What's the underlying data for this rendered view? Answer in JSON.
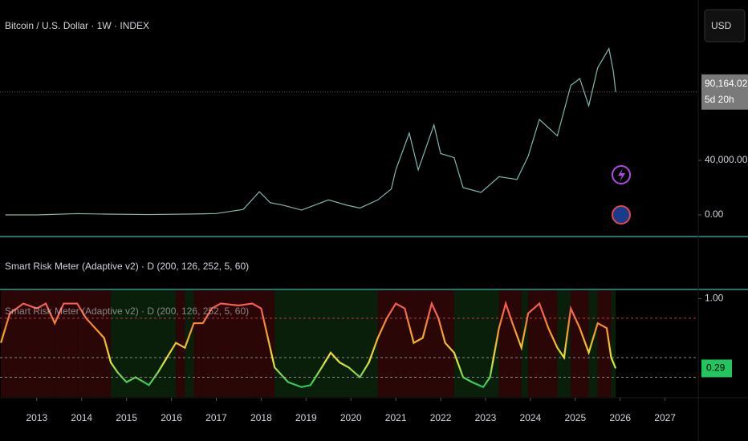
{
  "chart_data": [
    {
      "type": "line",
      "title": "Bitcoin / U.S. Dollar · 1W · INDEX",
      "currency": "USD",
      "x": [
        2012.3,
        2013.0,
        2013.9,
        2014.5,
        2015.5,
        2016.5,
        2017.0,
        2017.6,
        2017.96,
        2018.2,
        2018.5,
        2018.9,
        2019.5,
        2019.9,
        2020.2,
        2020.6,
        2020.9,
        2021.0,
        2021.3,
        2021.5,
        2021.85,
        2022.0,
        2022.3,
        2022.5,
        2022.9,
        2023.3,
        2023.7,
        2023.95,
        2024.2,
        2024.6,
        2024.9,
        2025.1,
        2025.3,
        2025.5,
        2025.75,
        2025.85,
        2025.9
      ],
      "values": [
        5,
        13,
        900,
        600,
        250,
        650,
        1000,
        4000,
        17000,
        9000,
        7000,
        3500,
        11000,
        7200,
        5000,
        11000,
        19000,
        33000,
        60000,
        33000,
        66000,
        45000,
        42000,
        20000,
        16500,
        28000,
        26000,
        43000,
        70000,
        58000,
        95000,
        100000,
        80000,
        108000,
        122000,
        105000,
        90164.02
      ],
      "color": "#7fb8b0",
      "last_label": "90,164.02",
      "countdown": "5d 20h",
      "xlim": [
        2012.18,
        2027.74
      ],
      "ylim": [
        -15300,
        157650
      ],
      "yticks": [
        {
          "value": 0,
          "label": "0.00"
        },
        {
          "value": 40000,
          "label": "40,000.00"
        }
      ]
    },
    {
      "type": "line",
      "title": "Smart Risk Meter (Adaptive v2) · D (200, 126, 252, 5, 60)",
      "x": [
        2012.2,
        2012.4,
        2012.7,
        2013.0,
        2013.2,
        2013.4,
        2013.6,
        2013.9,
        2014.1,
        2014.3,
        2014.5,
        2014.65,
        2014.8,
        2015.0,
        2015.2,
        2015.5,
        2015.7,
        2015.9,
        2016.1,
        2016.3,
        2016.5,
        2016.7,
        2016.9,
        2017.1,
        2017.5,
        2017.8,
        2018.0,
        2018.15,
        2018.3,
        2018.6,
        2018.9,
        2019.1,
        2019.35,
        2019.55,
        2019.75,
        2019.95,
        2020.2,
        2020.4,
        2020.6,
        2020.8,
        2021.0,
        2021.2,
        2021.4,
        2021.6,
        2021.8,
        2021.95,
        2022.1,
        2022.3,
        2022.5,
        2022.7,
        2022.95,
        2023.1,
        2023.3,
        2023.45,
        2023.6,
        2023.8,
        2023.95,
        2024.2,
        2024.4,
        2024.6,
        2024.75,
        2024.9,
        2025.1,
        2025.3,
        2025.5,
        2025.7,
        2025.8,
        2025.9
      ],
      "values": [
        0.55,
        0.85,
        0.95,
        0.9,
        0.95,
        0.75,
        0.95,
        0.95,
        0.8,
        0.7,
        0.6,
        0.35,
        0.25,
        0.15,
        0.2,
        0.12,
        0.25,
        0.4,
        0.55,
        0.5,
        0.75,
        0.75,
        0.9,
        0.95,
        0.93,
        0.95,
        0.9,
        0.6,
        0.3,
        0.15,
        0.1,
        0.12,
        0.3,
        0.45,
        0.35,
        0.3,
        0.2,
        0.35,
        0.6,
        0.8,
        0.95,
        0.9,
        0.55,
        0.6,
        0.95,
        0.8,
        0.55,
        0.45,
        0.2,
        0.15,
        0.1,
        0.2,
        0.7,
        0.95,
        0.75,
        0.5,
        0.85,
        0.95,
        0.7,
        0.5,
        0.4,
        0.9,
        0.7,
        0.45,
        0.75,
        0.7,
        0.4,
        0.29
      ],
      "colors": [
        "#22c55e",
        "#e8e83a",
        "#f5a623",
        "#f25c54"
      ],
      "last_label": "0.29",
      "levels": [
        0.8,
        0.4,
        0.2
      ],
      "xlim": [
        2012.18,
        2027.74
      ],
      "ylim": [
        0,
        1.085
      ],
      "xticks": [
        2013,
        2014,
        2015,
        2016,
        2017,
        2018,
        2019,
        2020,
        2021,
        2022,
        2023,
        2024,
        2025,
        2026,
        2027
      ],
      "yticks": [
        {
          "value": 1,
          "label": "1.00"
        }
      ]
    }
  ]
}
